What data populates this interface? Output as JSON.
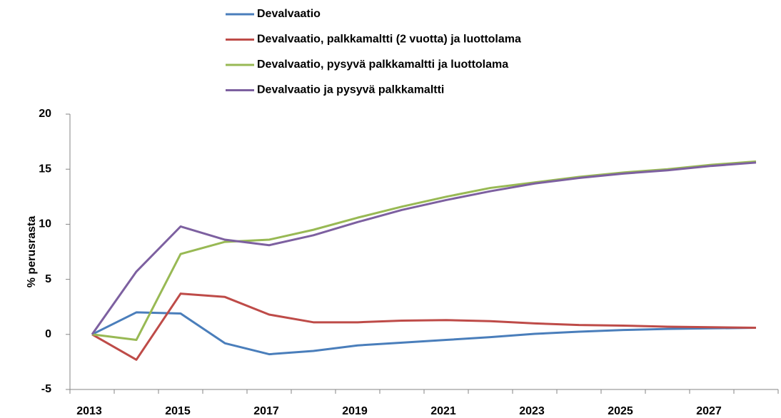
{
  "chart_data": {
    "type": "line",
    "y_label": "% perusrasta",
    "categories": [
      "2013",
      null,
      "2015",
      null,
      "2017",
      null,
      "2019",
      null,
      "2021",
      null,
      "2023",
      null,
      "2025",
      null,
      "2027",
      null
    ],
    "series": [
      {
        "name": "Devalvaatio",
        "color": "#4a7ebb",
        "values": [
          0,
          2.0,
          1.9,
          -0.8,
          -1.8,
          -1.5,
          -1.0,
          -0.75,
          -0.5,
          -0.25,
          0.05,
          0.25,
          0.4,
          0.5,
          0.55,
          0.6
        ]
      },
      {
        "name": "Devalvaatio, palkkamaltti (2 vuotta) ja luottolama",
        "color": "#be4b48",
        "values": [
          0,
          -2.3,
          3.7,
          3.4,
          1.8,
          1.1,
          1.1,
          1.25,
          1.3,
          1.2,
          1.0,
          0.85,
          0.8,
          0.7,
          0.65,
          0.6
        ]
      },
      {
        "name": "Devalvaatio, pysyvä palkkamaltti ja luottolama",
        "color": "#98b954",
        "values": [
          0,
          -0.5,
          7.3,
          8.4,
          8.6,
          9.5,
          10.6,
          11.6,
          12.5,
          13.3,
          13.8,
          14.3,
          14.7,
          15.0,
          15.4,
          15.7
        ]
      },
      {
        "name": "Devalvaatio ja pysyvä palkkamaltti",
        "color": "#7d60a0",
        "values": [
          0,
          5.7,
          9.8,
          8.6,
          8.1,
          9.0,
          10.2,
          11.3,
          12.2,
          13.0,
          13.7,
          14.2,
          14.6,
          14.9,
          15.3,
          15.6
        ]
      }
    ],
    "ylim": [
      -5,
      20
    ],
    "yticks": [
      -5,
      0,
      5,
      10,
      15,
      20
    ],
    "grid": false,
    "legend": "top"
  }
}
